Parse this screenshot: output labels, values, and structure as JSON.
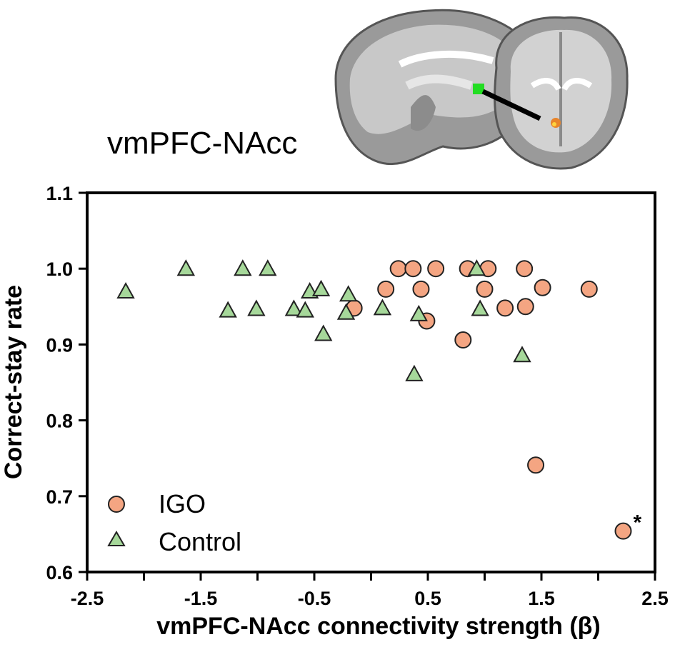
{
  "figure": {
    "title": "vmPFC-NAcc",
    "inset_label": "sagittal and coronal brain slices (vmPFC seed, NAcc region)"
  },
  "colors": {
    "igo_fill": "#F4A582",
    "control_fill": "#A6D89A",
    "marker_stroke": "#222222",
    "seed_green": "#22DD22",
    "nacc_orange": "#E8842A"
  },
  "chart_data": {
    "type": "scatter",
    "xlabel": "vmPFC-NAcc connectivity strength (β)",
    "ylabel": "Correct-stay rate",
    "xlim": [
      -2.5,
      2.5
    ],
    "ylim": [
      0.6,
      1.1
    ],
    "x_ticks": [
      -2.5,
      -1.5,
      -0.5,
      0.5,
      1.5,
      2.5
    ],
    "x_tick_labels": [
      "-2.5",
      "-1.5",
      "-0.5",
      "0.5",
      "1.5",
      "2.5"
    ],
    "y_ticks": [
      0.6,
      0.7,
      0.8,
      0.9,
      1.0,
      1.1
    ],
    "y_tick_labels": [
      "0.6",
      "0.7",
      "0.8",
      "0.9",
      "1.0",
      "1.1"
    ],
    "grid": false,
    "legend_position": "bottom-left",
    "series": [
      {
        "name": "IGO",
        "marker": "circle",
        "points": [
          [
            -0.15,
            0.948
          ],
          [
            0.13,
            0.973
          ],
          [
            0.24,
            1.0
          ],
          [
            0.37,
            1.0
          ],
          [
            0.44,
            0.973
          ],
          [
            0.49,
            0.931
          ],
          [
            0.57,
            1.0
          ],
          [
            0.81,
            0.906
          ],
          [
            0.85,
            1.0
          ],
          [
            1.0,
            0.973
          ],
          [
            1.03,
            1.0
          ],
          [
            1.18,
            0.948
          ],
          [
            1.35,
            1.0
          ],
          [
            1.36,
            0.95
          ],
          [
            1.51,
            0.975
          ],
          [
            1.92,
            0.973
          ],
          [
            1.45,
            0.741
          ],
          [
            2.22,
            0.654
          ]
        ]
      },
      {
        "name": "Control",
        "marker": "triangle",
        "points": [
          [
            -2.16,
            0.97
          ],
          [
            -1.63,
            1.0
          ],
          [
            -1.26,
            0.945
          ],
          [
            -1.13,
            1.0
          ],
          [
            -1.01,
            0.947
          ],
          [
            -0.91,
            1.0
          ],
          [
            -0.68,
            0.947
          ],
          [
            -0.58,
            0.945
          ],
          [
            -0.54,
            0.97
          ],
          [
            -0.44,
            0.973
          ],
          [
            -0.42,
            0.914
          ],
          [
            -0.22,
            0.942
          ],
          [
            -0.2,
            0.966
          ],
          [
            0.1,
            0.948
          ],
          [
            0.38,
            0.861
          ],
          [
            0.42,
            0.94
          ],
          [
            0.93,
            1.0
          ],
          [
            0.96,
            0.947
          ],
          [
            1.33,
            0.886
          ]
        ]
      }
    ],
    "annotations": [
      {
        "text": "*",
        "near_point": [
          2.22,
          0.654
        ]
      }
    ]
  }
}
